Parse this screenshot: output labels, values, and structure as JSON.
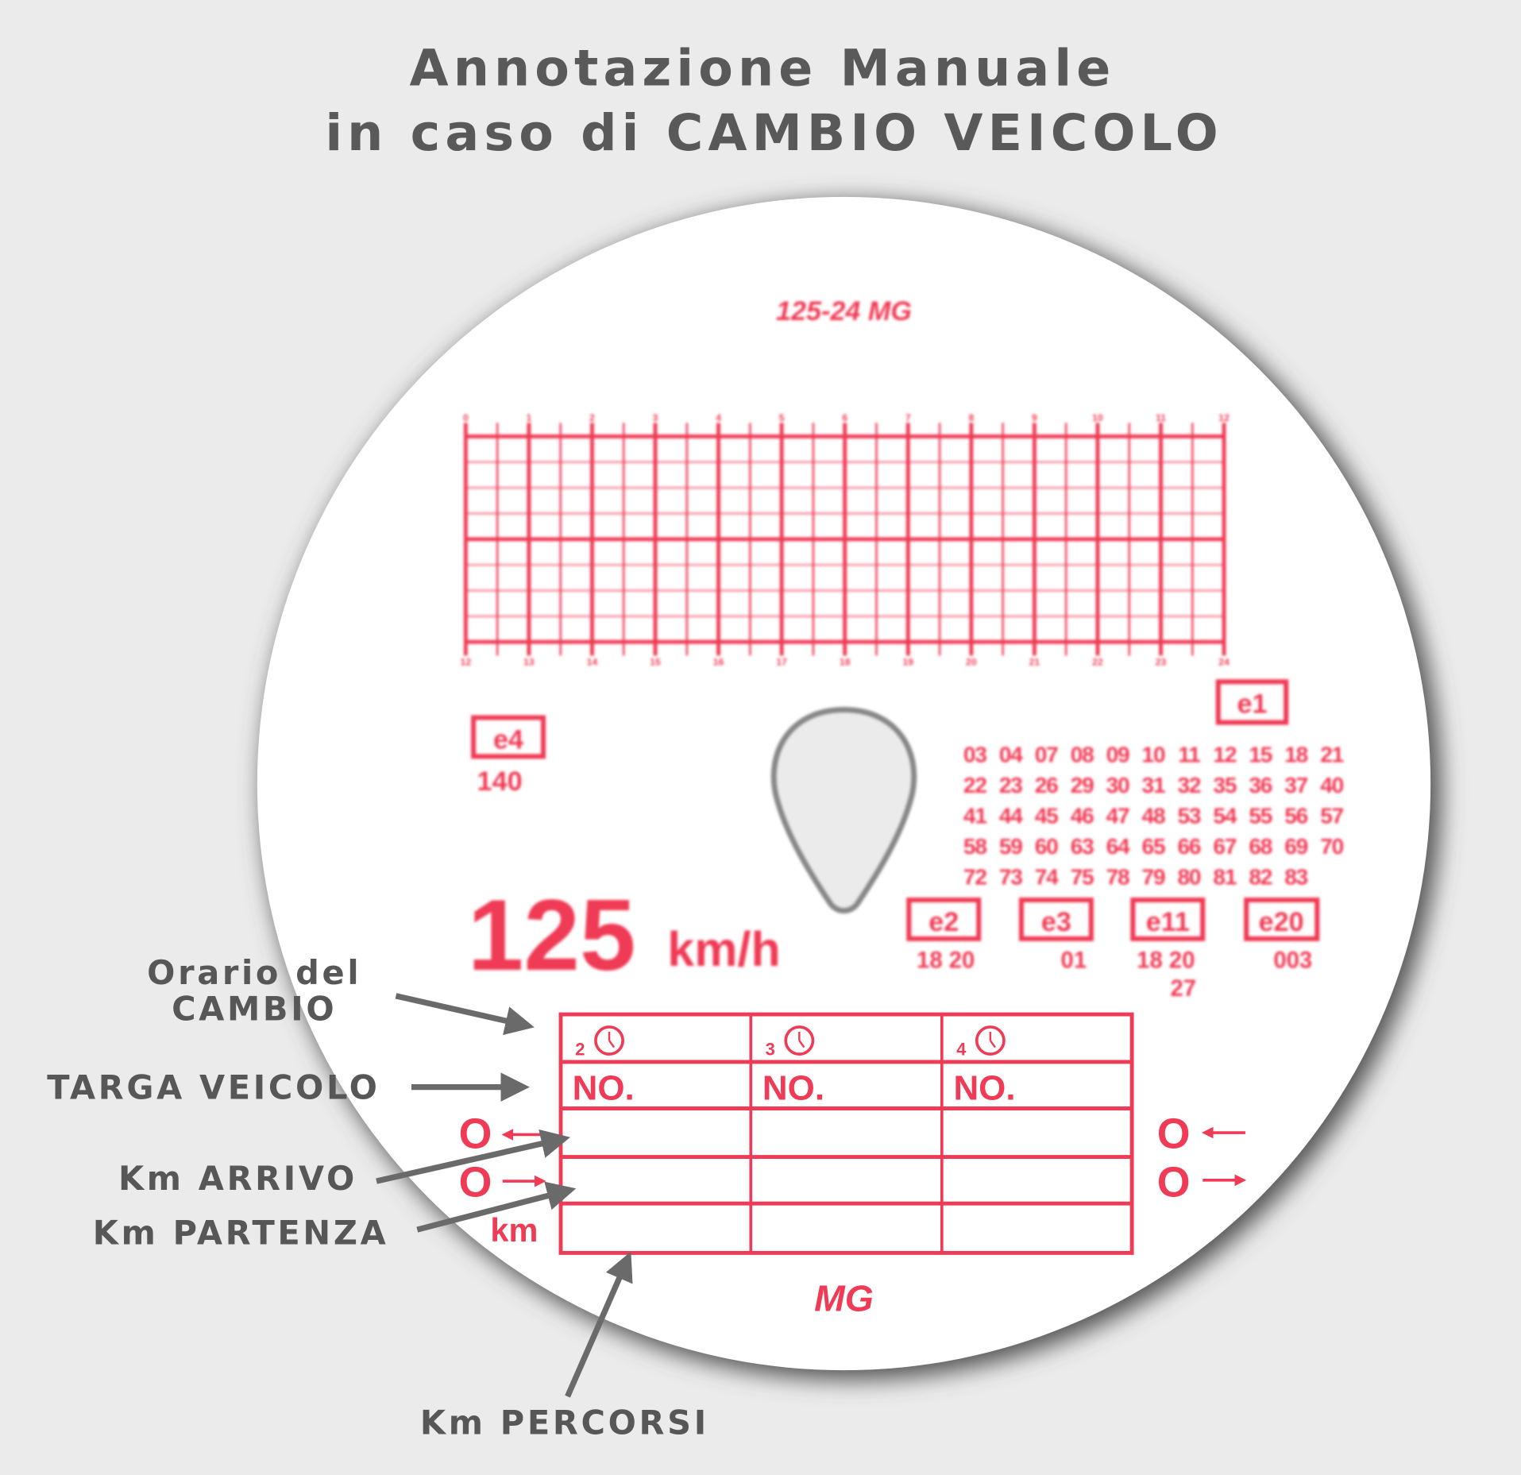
{
  "title": {
    "line1": "Annotazione Manuale",
    "line2": "in caso di CAMBIO VEICOLO"
  },
  "colors": {
    "background": "#ebebeb",
    "disc": "#ffffff",
    "print_red": "#ef3b55",
    "annotation_gray": "#595959"
  },
  "disc": {
    "header": "125-24 MG",
    "grid": {
      "top_hours": [
        "0",
        "1",
        "2",
        "3",
        "4",
        "5",
        "6",
        "7",
        "8",
        "9",
        "10",
        "11",
        "12"
      ],
      "bottom_hours": [
        "12",
        "13",
        "14",
        "15",
        "16",
        "17",
        "18",
        "19",
        "20",
        "21",
        "22",
        "23",
        "24"
      ]
    },
    "approval_marks": [
      {
        "mark": "e4",
        "codes": [
          "140"
        ]
      },
      {
        "mark": "e1",
        "codes": []
      },
      {
        "mark": "e2",
        "codes": [
          "18 20"
        ]
      },
      {
        "mark": "e3",
        "codes": [
          "01"
        ]
      },
      {
        "mark": "e11",
        "codes": [
          "18 20",
          "27"
        ]
      },
      {
        "mark": "e20",
        "codes": [
          "003"
        ]
      }
    ],
    "code_rows": [
      [
        "03",
        "04",
        "07",
        "08",
        "09",
        "10",
        "11",
        "12",
        "15",
        "18",
        "21"
      ],
      [
        "22",
        "23",
        "26",
        "29",
        "30",
        "31",
        "32",
        "35",
        "36",
        "37",
        "40"
      ],
      [
        "41",
        "44",
        "45",
        "46",
        "47",
        "48",
        "53",
        "54",
        "55",
        "56",
        "57"
      ],
      [
        "58",
        "59",
        "60",
        "63",
        "64",
        "65",
        "66",
        "67",
        "68",
        "69",
        "70"
      ],
      [
        "72",
        "73",
        "74",
        "75",
        "78",
        "79",
        "80",
        "81",
        "82",
        "83"
      ]
    ],
    "speed": {
      "value": "125",
      "unit": "km/h"
    },
    "table": {
      "columns": [
        {
          "index": "2",
          "plate_label": "NO."
        },
        {
          "index": "3",
          "plate_label": "NO."
        },
        {
          "index": "4",
          "plate_label": "NO."
        }
      ],
      "km_label": "km",
      "odometer_symbol": "O"
    },
    "footer": "MG"
  },
  "annotations": {
    "orario_line1": "Orario del",
    "orario_line2": "CAMBIO",
    "targa": "TARGA VEICOLO",
    "km_arrivo": "Km ARRIVO",
    "km_partenza": "Km PARTENZA",
    "km_percorsi": "Km PERCORSI"
  }
}
